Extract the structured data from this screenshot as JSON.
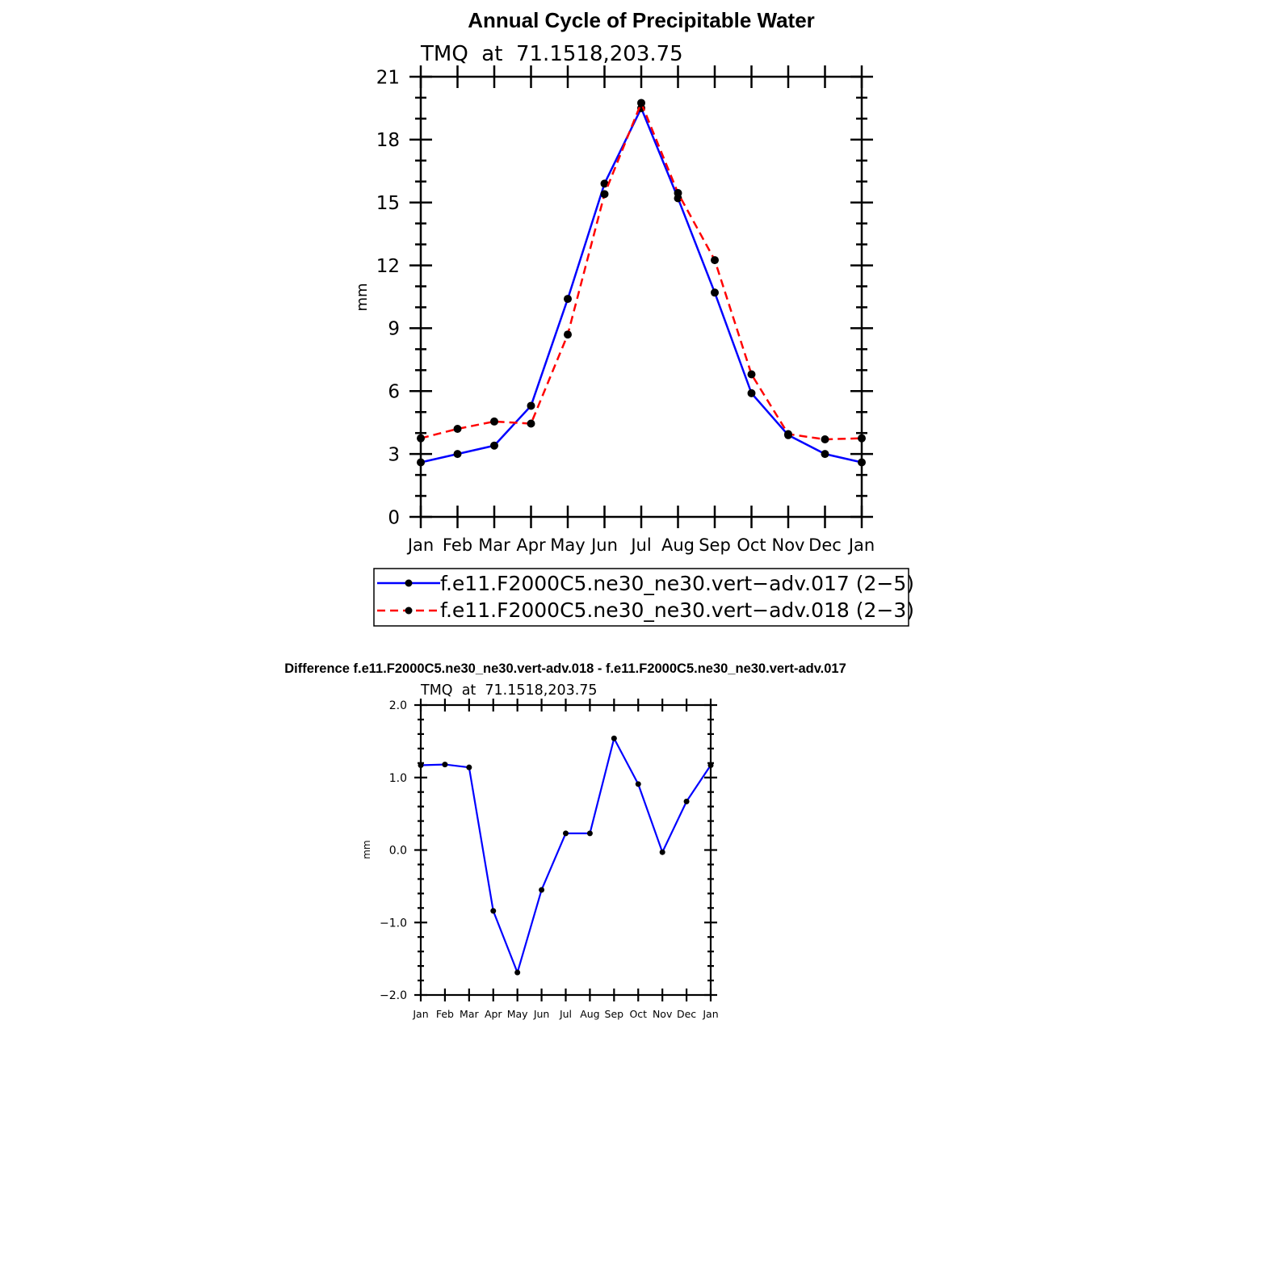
{
  "chart_data": [
    {
      "type": "line",
      "title": "Annual Cycle of Precipitable Water",
      "subtitle": "TMQ  at  71.1518,203.75",
      "ylabel": "mm",
      "xlabel": "",
      "ylim": [
        0,
        21
      ],
      "yticks": [
        "0",
        "3",
        "6",
        "9",
        "12",
        "15",
        "18",
        "21"
      ],
      "categories": [
        "Jan",
        "Feb",
        "Mar",
        "Apr",
        "May",
        "Jun",
        "Jul",
        "Aug",
        "Sep",
        "Oct",
        "Nov",
        "Dec",
        "Jan"
      ],
      "grid": false,
      "legend_position": "bottom",
      "series": [
        {
          "name": "f.e11.F2000C5.ne30_ne30.vert−adv.017 (2−5)",
          "color": "#0000ff",
          "dash": "solid",
          "values": [
            2.6,
            3.0,
            3.4,
            5.3,
            10.4,
            15.9,
            19.5,
            15.2,
            10.7,
            5.9,
            3.9,
            3.0,
            2.6
          ]
        },
        {
          "name": "f.e11.F2000C5.ne30_ne30.vert−adv.018 (2−3)",
          "color": "#ff0000",
          "dash": "dashed",
          "values": [
            3.75,
            4.2,
            4.55,
            4.45,
            8.7,
            15.4,
            19.75,
            15.45,
            12.25,
            6.8,
            3.95,
            3.7,
            3.75
          ]
        }
      ]
    },
    {
      "type": "line",
      "title": "Difference f.e11.F2000C5.ne30_ne30.vert-adv.018 - f.e11.F2000C5.ne30_ne30.vert-adv.017",
      "subtitle": "TMQ  at  71.1518,203.75",
      "ylabel": "mm",
      "xlabel": "",
      "ylim": [
        -2.0,
        2.0
      ],
      "yticks": [
        "−2.0",
        "−1.0",
        "0.0",
        "1.0",
        "2.0"
      ],
      "categories": [
        "Jan",
        "Feb",
        "Mar",
        "Apr",
        "May",
        "Jun",
        "Jul",
        "Aug",
        "Sep",
        "Oct",
        "Nov",
        "Dec",
        "Jan"
      ],
      "grid": false,
      "series": [
        {
          "name": "",
          "color": "#0000ff",
          "dash": "solid",
          "values": [
            1.17,
            1.18,
            1.14,
            -0.84,
            -1.69,
            -0.55,
            0.23,
            0.23,
            1.54,
            0.91,
            -0.03,
            0.67,
            1.17
          ]
        }
      ]
    }
  ]
}
